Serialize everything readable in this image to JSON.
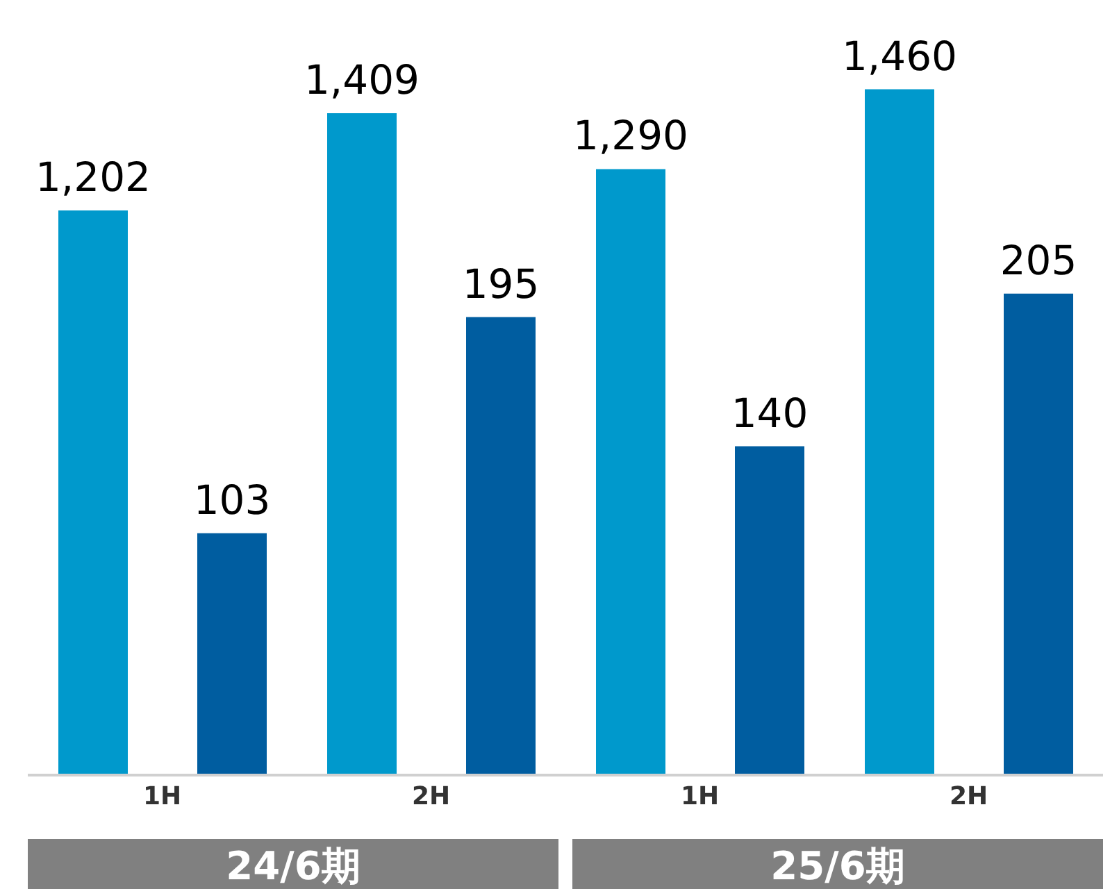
{
  "chart_data": {
    "type": "bar",
    "categories": [
      "1H",
      "2H",
      "1H",
      "2H"
    ],
    "series": [
      {
        "color": "#0099cc",
        "values": [
          1202,
          1409,
          1290,
          1460
        ],
        "value_labels": [
          "1,202",
          "1,409",
          "1,290",
          "1,460"
        ]
      },
      {
        "color": "#005da0",
        "axis": "y2",
        "values": [
          103,
          195,
          140,
          205
        ],
        "value_labels": [
          "103",
          "195",
          "140",
          "205"
        ]
      }
    ],
    "ylim": [
      0,
      1650
    ],
    "y2lim": [
      0,
      330
    ],
    "tick_labels": "x",
    "annotations": [
      "24/6期",
      "25/6期"
    ]
  }
}
